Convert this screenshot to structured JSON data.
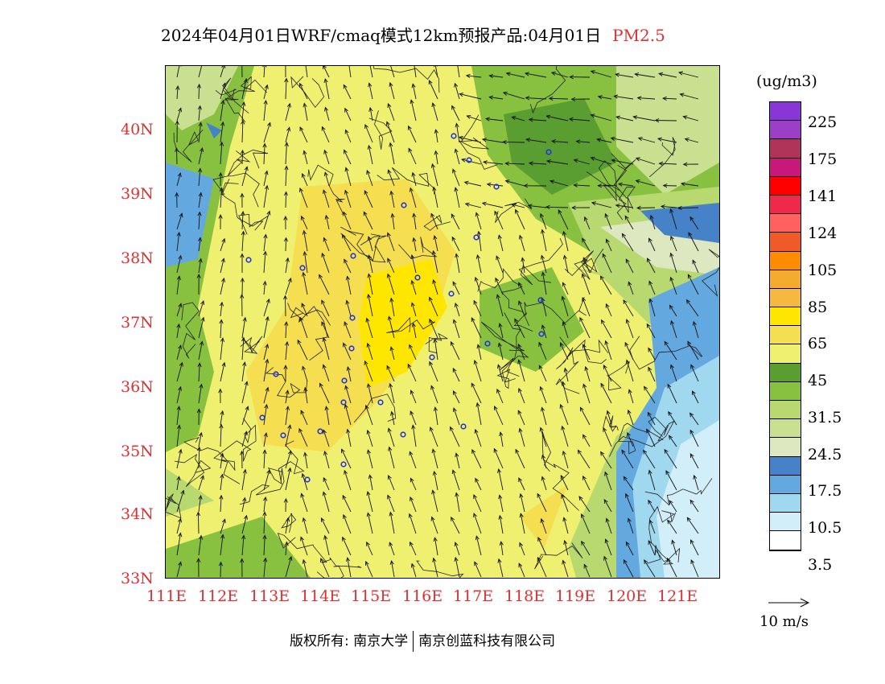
{
  "title": {
    "main": "2024年04月01日WRF/cmaq模式12km预报产品:04月01日",
    "pollutant": "PM2.5"
  },
  "map": {
    "lat_labels": [
      "40N",
      "39N",
      "38N",
      "37N",
      "36N",
      "35N",
      "34N",
      "33N"
    ],
    "lon_labels": [
      "111E",
      "112E",
      "113E",
      "114E",
      "115E",
      "116E",
      "117E",
      "118E",
      "119E",
      "120E",
      "121E"
    ],
    "axis_label_color": "#e03030"
  },
  "legend": {
    "unit": "(ug/m3)",
    "levels": [
      "225",
      "175",
      "141",
      "124",
      "105",
      "85",
      "65",
      "45",
      "31.5",
      "24.5",
      "17.5",
      "10.5",
      "3.5"
    ],
    "colors": [
      "#8a35d8",
      "#9b3fc8",
      "#b0345a",
      "#c8197a",
      "#ff0000",
      "#f0284a",
      "#ff6060",
      "#f05a28",
      "#ff8c00",
      "#f5aa30",
      "#f5b840",
      "#ffe600",
      "#f5df50",
      "#f0f070",
      "#5a9e32",
      "#88c040",
      "#b8d870",
      "#c8e090",
      "#dde8c0",
      "#4682c8",
      "#64a8e0",
      "#a0d8f0",
      "#d2eef8",
      "#ffffff"
    ]
  },
  "wind_reference": {
    "label": "10 m/s"
  },
  "footer": {
    "copyright": "版权所有: 南京大学",
    "company": "南京创蓝科技有限公司"
  }
}
